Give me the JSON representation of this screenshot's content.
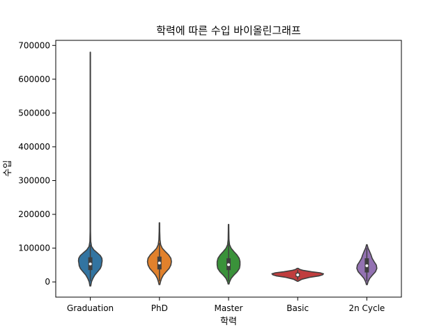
{
  "chart_data": {
    "type": "violin",
    "title": "학력에 따른 수입 바이올린그래프",
    "xlabel": "학력",
    "ylabel": "수입",
    "ylim": [
      -45000,
      715000
    ],
    "yticks": [
      0,
      100000,
      200000,
      300000,
      400000,
      500000,
      600000,
      700000
    ],
    "ytick_labels": [
      "0",
      "100000",
      "200000",
      "300000",
      "400000",
      "500000",
      "600000",
      "700000"
    ],
    "grid": false,
    "legend": "none",
    "categories": [
      "Graduation",
      "PhD",
      "Master",
      "Basic",
      "2n Cycle"
    ],
    "series": [
      {
        "category": "Graduation",
        "color": "#3274a1",
        "min": -12000,
        "max": 680000,
        "q1": 35000,
        "median": 53000,
        "q3": 73000,
        "whisker_low": 2000,
        "whisker_high": 110000,
        "profile": [
          [
            -12000,
            0.03
          ],
          [
            0,
            0.08
          ],
          [
            10000,
            0.18
          ],
          [
            20000,
            0.32
          ],
          [
            30000,
            0.52
          ],
          [
            40000,
            0.72
          ],
          [
            48000,
            0.8
          ],
          [
            55000,
            0.82
          ],
          [
            62000,
            0.85
          ],
          [
            70000,
            0.83
          ],
          [
            78000,
            0.72
          ],
          [
            86000,
            0.5
          ],
          [
            95000,
            0.25
          ],
          [
            105000,
            0.09
          ],
          [
            120000,
            0.03
          ],
          [
            150000,
            0.015
          ],
          [
            680000,
            0.01
          ]
        ]
      },
      {
        "category": "PhD",
        "color": "#e1812c",
        "min": -8000,
        "max": 175000,
        "q1": 37000,
        "median": 56000,
        "q3": 75000,
        "whisker_low": 2000,
        "whisker_high": 115000,
        "profile": [
          [
            -8000,
            0.03
          ],
          [
            0,
            0.07
          ],
          [
            10000,
            0.15
          ],
          [
            20000,
            0.28
          ],
          [
            30000,
            0.48
          ],
          [
            40000,
            0.7
          ],
          [
            50000,
            0.82
          ],
          [
            60000,
            0.86
          ],
          [
            70000,
            0.82
          ],
          [
            80000,
            0.66
          ],
          [
            90000,
            0.42
          ],
          [
            100000,
            0.2
          ],
          [
            110000,
            0.09
          ],
          [
            125000,
            0.04
          ],
          [
            150000,
            0.02
          ],
          [
            175000,
            0.015
          ]
        ]
      },
      {
        "category": "Master",
        "color": "#3a923a",
        "min": -6000,
        "max": 170000,
        "q1": 35000,
        "median": 51000,
        "q3": 70000,
        "whisker_low": 2000,
        "whisker_high": 113000,
        "profile": [
          [
            -6000,
            0.03
          ],
          [
            0,
            0.07
          ],
          [
            10000,
            0.18
          ],
          [
            20000,
            0.38
          ],
          [
            30000,
            0.62
          ],
          [
            40000,
            0.78
          ],
          [
            50000,
            0.82
          ],
          [
            60000,
            0.82
          ],
          [
            70000,
            0.76
          ],
          [
            80000,
            0.6
          ],
          [
            90000,
            0.38
          ],
          [
            100000,
            0.18
          ],
          [
            110000,
            0.07
          ],
          [
            125000,
            0.03
          ],
          [
            150000,
            0.02
          ],
          [
            170000,
            0.015
          ]
        ]
      },
      {
        "category": "Basic",
        "color": "#c03d3e",
        "min": 2000,
        "max": 40000,
        "q1": 15000,
        "median": 21000,
        "q3": 27000,
        "whisker_low": 7000,
        "whisker_high": 35000,
        "profile": [
          [
            2000,
            0.03
          ],
          [
            8000,
            0.3
          ],
          [
            14000,
            0.9
          ],
          [
            18000,
            1.55
          ],
          [
            21000,
            1.78
          ],
          [
            24000,
            1.85
          ],
          [
            27000,
            1.6
          ],
          [
            30000,
            1.0
          ],
          [
            34000,
            0.4
          ],
          [
            37000,
            0.15
          ],
          [
            40000,
            0.04
          ]
        ]
      },
      {
        "category": "2n Cycle",
        "color": "#9372b2",
        "min": -8000,
        "max": 110000,
        "q1": 28000,
        "median": 48000,
        "q3": 70000,
        "whisker_low": 2000,
        "whisker_high": 100000,
        "profile": [
          [
            -8000,
            0.03
          ],
          [
            0,
            0.08
          ],
          [
            10000,
            0.2
          ],
          [
            20000,
            0.4
          ],
          [
            30000,
            0.62
          ],
          [
            40000,
            0.72
          ],
          [
            50000,
            0.68
          ],
          [
            60000,
            0.52
          ],
          [
            70000,
            0.38
          ],
          [
            80000,
            0.3
          ],
          [
            90000,
            0.2
          ],
          [
            100000,
            0.09
          ],
          [
            110000,
            0.02
          ]
        ]
      }
    ]
  }
}
